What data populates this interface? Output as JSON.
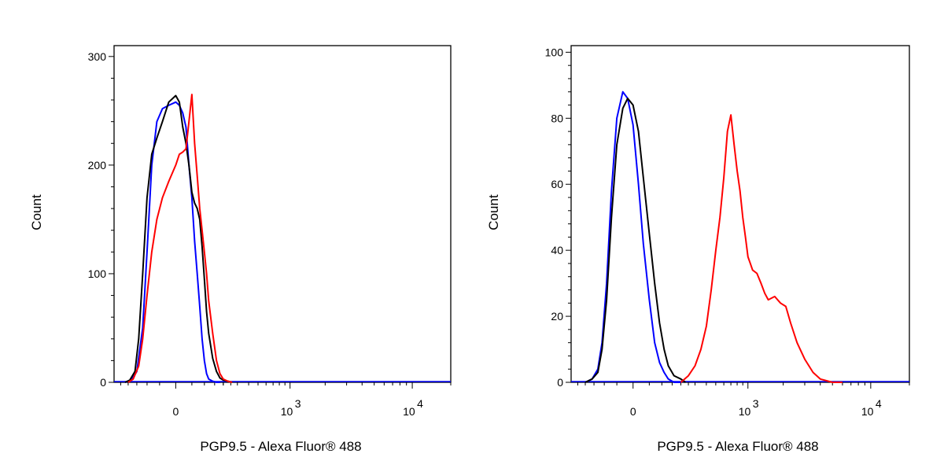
{
  "chart_data": [
    {
      "type": "line",
      "xlabel": "PGP9.5 - Alexa Fluor® 488",
      "ylabel": "Count",
      "ylim": [
        0,
        300
      ],
      "yticks": [
        "0",
        "100",
        "200",
        "300"
      ],
      "xticks": [
        {
          "base": "",
          "exp": "",
          "text": "0"
        },
        {
          "base": "10",
          "exp": "3",
          "text": ""
        },
        {
          "base": "10",
          "exp": "4",
          "text": ""
        }
      ],
      "grid": false,
      "series": [
        {
          "color": "#0000ff",
          "x": [
            -220,
            -180,
            -150,
            -120,
            -100,
            -80,
            -60,
            -40,
            -20,
            0,
            10,
            20,
            30,
            40,
            50,
            60,
            70,
            80,
            90,
            100,
            110,
            120,
            140,
            160,
            180
          ],
          "y": [
            0,
            2,
            10,
            50,
            120,
            200,
            240,
            252,
            255,
            258,
            255,
            248,
            235,
            200,
            170,
            130,
            100,
            70,
            40,
            20,
            8,
            3,
            1,
            0,
            0
          ]
        },
        {
          "color": "#000000",
          "x": [
            -220,
            -190,
            -160,
            -140,
            -120,
            -100,
            -80,
            -60,
            -40,
            -20,
            0,
            10,
            20,
            30,
            40,
            50,
            60,
            70,
            80,
            90,
            100,
            110,
            120,
            140,
            160,
            180,
            200,
            230,
            260
          ],
          "y": [
            0,
            2,
            10,
            40,
            100,
            170,
            210,
            225,
            240,
            258,
            264,
            258,
            235,
            220,
            200,
            175,
            165,
            160,
            150,
            125,
            95,
            65,
            45,
            22,
            10,
            4,
            2,
            1,
            0
          ]
        },
        {
          "color": "#ff0000",
          "x": [
            -200,
            -170,
            -140,
            -120,
            -100,
            -80,
            -60,
            -40,
            -20,
            0,
            10,
            20,
            30,
            40,
            50,
            60,
            70,
            80,
            90,
            100,
            110,
            120,
            140,
            160,
            180,
            200,
            230,
            260
          ],
          "y": [
            0,
            3,
            15,
            40,
            80,
            120,
            150,
            170,
            185,
            200,
            210,
            212,
            215,
            240,
            265,
            220,
            190,
            160,
            140,
            120,
            100,
            75,
            45,
            20,
            8,
            3,
            1,
            0
          ]
        }
      ]
    },
    {
      "type": "line",
      "xlabel": "PGP9.5 - Alexa Fluor® 488",
      "ylabel": "Count",
      "ylim": [
        0,
        100
      ],
      "yticks": [
        "0",
        "20",
        "40",
        "60",
        "80",
        "100"
      ],
      "xticks": [
        {
          "base": "",
          "exp": "",
          "text": "0"
        },
        {
          "base": "10",
          "exp": "3",
          "text": ""
        },
        {
          "base": "10",
          "exp": "4",
          "text": ""
        }
      ],
      "grid": false,
      "series": [
        {
          "color": "#0000ff",
          "x": [
            -200,
            -160,
            -130,
            -110,
            -90,
            -70,
            -50,
            -30,
            -15,
            0,
            15,
            30,
            50,
            70,
            90,
            110,
            130,
            160,
            200
          ],
          "y": [
            0,
            1,
            4,
            12,
            30,
            58,
            80,
            88,
            86,
            78,
            60,
            42,
            25,
            12,
            6,
            3,
            1,
            0,
            0
          ]
        },
        {
          "color": "#000000",
          "x": [
            -200,
            -160,
            -130,
            -110,
            -90,
            -70,
            -50,
            -30,
            -15,
            0,
            15,
            30,
            50,
            70,
            90,
            110,
            130,
            160,
            200,
            230
          ],
          "y": [
            0,
            1,
            3,
            10,
            25,
            50,
            72,
            83,
            86,
            84,
            76,
            62,
            45,
            30,
            18,
            10,
            5,
            2,
            1,
            0
          ]
        },
        {
          "color": "#ff0000",
          "x": [
            200,
            250,
            300,
            350,
            400,
            450,
            500,
            550,
            600,
            650,
            700,
            750,
            800,
            850,
            900,
            950,
            1000,
            1050,
            1100,
            1200,
            1300,
            1400,
            1500,
            1700,
            1900,
            2100,
            2300,
            2600,
            3000,
            3500,
            4000,
            5000,
            6000
          ],
          "y": [
            0,
            2,
            5,
            10,
            17,
            28,
            40,
            50,
            62,
            76,
            81,
            72,
            64,
            58,
            50,
            44,
            38,
            36,
            34,
            33,
            30,
            27,
            25,
            26,
            24,
            23,
            18,
            12,
            7,
            3,
            1,
            0,
            0
          ]
        }
      ]
    }
  ]
}
